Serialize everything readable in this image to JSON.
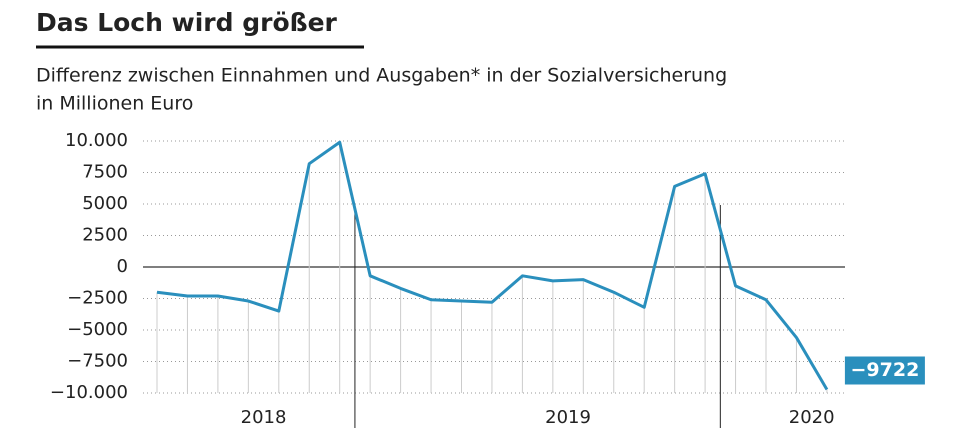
{
  "chart_data": {
    "type": "line",
    "title": "Das Loch wird größer",
    "subtitle": [
      "Differenz zwischen Einnahmen und Ausgaben* in der Sozialversicherung",
      "in Millionen Euro"
    ],
    "categories": [
      null,
      null,
      null,
      "2018",
      null,
      null,
      null,
      null,
      null,
      null,
      null,
      null,
      null,
      "2019",
      null,
      null,
      null,
      null,
      null,
      null,
      null,
      "2020",
      null
    ],
    "series": [
      {
        "name": null,
        "color": "#2a8fbd",
        "values": [
          -2000,
          -2300,
          -2300,
          -2700,
          -3500,
          8200,
          9900,
          -700,
          -1700,
          -2600,
          -2700,
          -2800,
          -700,
          -1100,
          -1000,
          -2000,
          -3200,
          6400,
          7400,
          -1500,
          -2600,
          -5600,
          -9722
        ],
        "value_labels": [
          null,
          null,
          null,
          null,
          null,
          null,
          null,
          null,
          null,
          null,
          null,
          null,
          null,
          null,
          null,
          null,
          null,
          null,
          null,
          null,
          null,
          null,
          "−9722"
        ]
      }
    ],
    "ylim": [
      -10000,
      10000
    ],
    "yticks": [
      {
        "value": -10000,
        "label": "−10.000"
      },
      {
        "value": -7500,
        "label": "−7500"
      },
      {
        "value": -5000,
        "label": "−5000"
      },
      {
        "value": -2500,
        "label": "−2500"
      },
      0,
      2500,
      5000,
      7500,
      {
        "value": 10000,
        "label": "10.000"
      }
    ],
    "grid": true
  }
}
